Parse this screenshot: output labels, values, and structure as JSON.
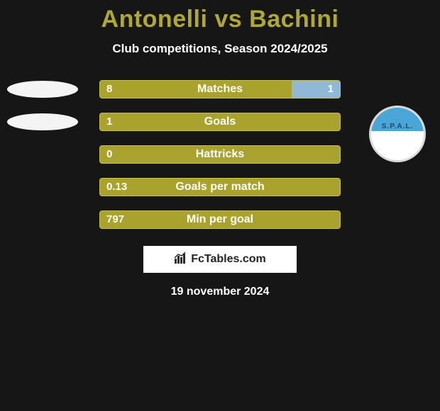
{
  "background_color": "#161616",
  "title": {
    "text": "Antonelli vs Bachini",
    "color": "#b0a92f",
    "fontsize": 34
  },
  "subtitle": {
    "text": "Club competitions, Season 2024/2025",
    "color": "#ffffff",
    "fontsize": 17
  },
  "bar_style": {
    "track_width": 340,
    "track_height": 26,
    "left_fill": "#a9a22c",
    "right_fill": "#8fb9d6",
    "border_color": "#c9c245",
    "label_color": "#ffffff",
    "value_color": "#ffffff"
  },
  "rows": [
    {
      "label": "Matches",
      "left": "8",
      "right": "1",
      "left_pct": 80,
      "right_pct": 20
    },
    {
      "label": "Goals",
      "left": "1",
      "right": "",
      "left_pct": 100,
      "right_pct": 0
    },
    {
      "label": "Hattricks",
      "left": "0",
      "right": "",
      "left_pct": 100,
      "right_pct": 0
    },
    {
      "label": "Goals per match",
      "left": "0.13",
      "right": "",
      "left_pct": 100,
      "right_pct": 0
    },
    {
      "label": "Min per goal",
      "left": "797",
      "right": "",
      "left_pct": 100,
      "right_pct": 0
    }
  ],
  "left_avatars": [
    {
      "row": 0,
      "ellipse_color": "#f4f4f4"
    },
    {
      "row": 1,
      "ellipse_color": "#f4f4f4"
    }
  ],
  "right_badge": {
    "row": 1,
    "border_color": "#d9d9d9",
    "top_color": "#4aa6d6",
    "bottom_color": "#ffffff",
    "text": "S.P.A.L.",
    "text_color": "#1b4a6b"
  },
  "fctables": {
    "text": "FcTables.com",
    "icon_color": "#2b2b2b"
  },
  "date": {
    "text": "19 november 2024",
    "color": "#ffffff"
  }
}
